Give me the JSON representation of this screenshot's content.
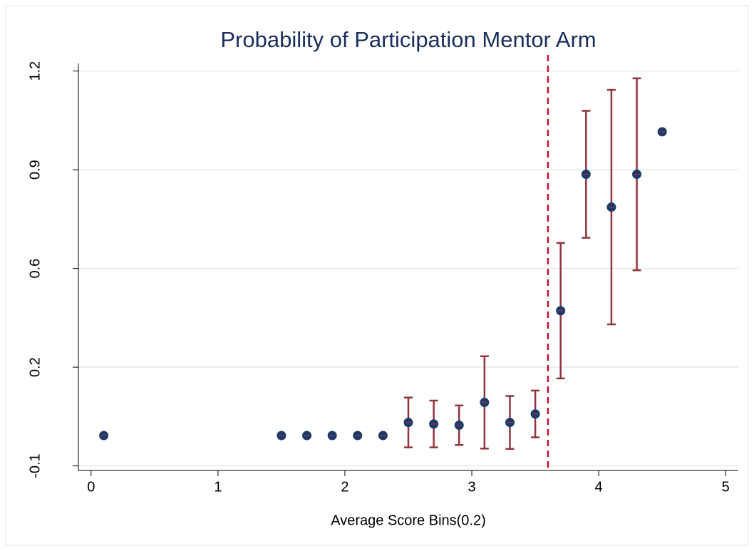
{
  "chart_data": {
    "type": "scatter",
    "title": "Probability of Participation Mentor Arm",
    "x_label": "Average Score Bins(0.2)",
    "series": [
      {
        "color": "#1a3a6b",
        "error_color": "#90353b",
        "x": [
          0.1,
          1.5,
          1.7,
          1.9,
          2.1,
          2.3,
          2.5,
          2.7,
          2.9,
          3.1,
          3.3,
          3.5,
          3.7,
          3.9,
          4.1,
          4.3,
          4.5
        ],
        "values": [
          0,
          0,
          0,
          0,
          0,
          0,
          0.043,
          0.038,
          0.034,
          0.109,
          0.043,
          0.071,
          0.411,
          0.86,
          0.752,
          0.86,
          1.0
        ],
        "errors": [
          null,
          null,
          null,
          null,
          null,
          null,
          0.082,
          0.077,
          0.065,
          0.152,
          0.087,
          0.077,
          0.223,
          0.209,
          0.386,
          0.316,
          null
        ]
      }
    ],
    "vline": {
      "x": 3.6,
      "color": "#c8102e"
    },
    "xlim": [
      -0.1,
      5.1
    ],
    "xticks": [
      0,
      1,
      2,
      3,
      4,
      5
    ],
    "ylim": [
      -0.115,
      1.225
    ],
    "yticks": [
      {
        "value": -0.1,
        "label": "-0.1"
      },
      {
        "value": 0.225,
        "label": "0.2"
      },
      {
        "value": 0.55,
        "label": "0.6"
      },
      {
        "value": 0.875,
        "label": "0.9"
      },
      {
        "value": 1.2,
        "label": "1.2"
      }
    ],
    "grid": true
  }
}
